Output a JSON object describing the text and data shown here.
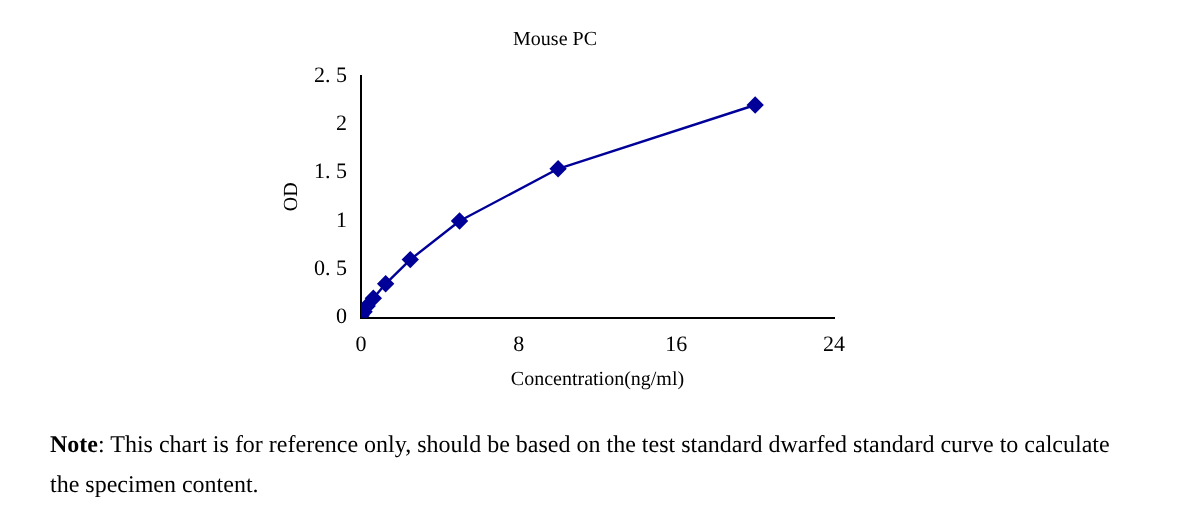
{
  "chart_data": {
    "type": "line",
    "title": "Mouse PC",
    "xlabel": "Concentration(ng/ml)",
    "ylabel": "OD",
    "series": [
      {
        "color": "#000099",
        "x": [
          0,
          0.156,
          0.312,
          0.625,
          1.25,
          2.5,
          5,
          10,
          20
        ],
        "values": [
          0.02,
          0.06,
          0.12,
          0.2,
          0.35,
          0.6,
          1.0,
          1.54,
          2.2
        ]
      }
    ],
    "xlim": [
      0,
      24
    ],
    "xticks": [
      0,
      8,
      16,
      24
    ],
    "ylim": [
      0,
      2.5
    ],
    "yticks": [
      0,
      {
        "value": 0.5,
        "label": "0. 5"
      },
      1,
      {
        "value": 1.5,
        "label": "1. 5"
      },
      2,
      {
        "value": 2.5,
        "label": "2. 5"
      }
    ],
    "grid": false,
    "legend": false,
    "marker": "diamond",
    "line_style": "solid",
    "annotations": [
      "Note: This chart is for reference only, should be based on the test standard dwarfed standard curve to calculate the specimen content."
    ]
  }
}
